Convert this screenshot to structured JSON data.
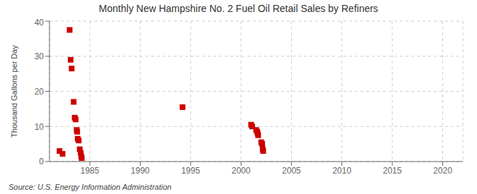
{
  "chart_data": {
    "type": "scatter",
    "title": "Monthly New Hampshire No. 2 Fuel Oil Retail Sales by Refiners",
    "ylabel": "Thousand Gallons per Day",
    "annotations": [
      "Source: U.S. Energy Information Administration"
    ],
    "x": [
      1982.0,
      1982.3,
      1983.0,
      1983.1,
      1983.2,
      1983.4,
      1983.5,
      1983.6,
      1983.7,
      1983.75,
      1983.8,
      1983.9,
      1984.0,
      1984.1,
      1984.15,
      1984.2,
      1994.2,
      2001.0,
      2001.1,
      2001.5,
      2001.6,
      2001.65,
      2001.7,
      2002.0,
      2002.1,
      2002.15,
      2002.2
    ],
    "values": [
      3.0,
      2.2,
      37.5,
      29.0,
      26.5,
      17.0,
      12.5,
      12.0,
      9.0,
      8.5,
      6.5,
      6.0,
      3.5,
      2.5,
      1.5,
      1.0,
      15.5,
      10.5,
      10.0,
      9.0,
      8.5,
      8.0,
      7.5,
      5.5,
      5.0,
      3.5,
      3.0
    ],
    "color": "#cc0000",
    "marker": "square",
    "xlim": [
      1981,
      2022
    ],
    "ylim": [
      0,
      40
    ],
    "xticks": [
      1985,
      1990,
      1995,
      2000,
      2005,
      2010,
      2015,
      2020
    ],
    "yticks": [
      0,
      10,
      20,
      30,
      40
    ],
    "grid": true
  }
}
